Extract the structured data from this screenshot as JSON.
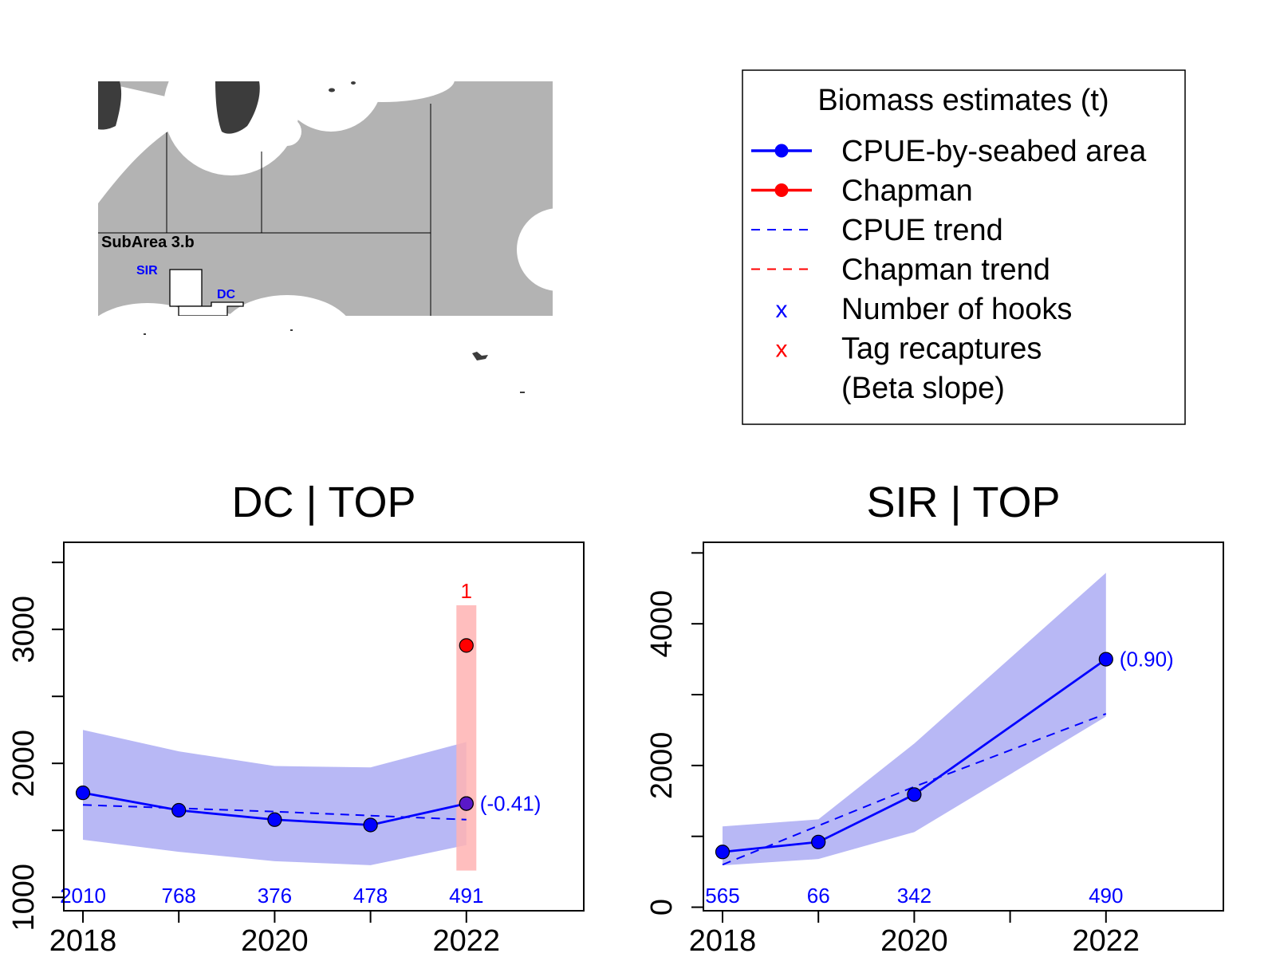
{
  "map": {
    "subarea_label": "SubArea 3.b",
    "sir_label": "SIR",
    "dc_label": "DC",
    "colors": {
      "sea": "#b3b3b3",
      "land": "#3c3c3c",
      "ice": "#ffffff",
      "rsr_label": "#0000ff"
    }
  },
  "legend": {
    "title": "Biomass estimates (t)",
    "items": [
      {
        "label": "CPUE-by-seabed area",
        "symbol": "line-point",
        "color": "#0000ff"
      },
      {
        "label": "Chapman",
        "symbol": "line-point",
        "color": "#ff0000"
      },
      {
        "label": "CPUE trend",
        "symbol": "dashed",
        "color": "#0000ff"
      },
      {
        "label": "Chapman trend",
        "symbol": "dashed",
        "color": "#ff0000"
      },
      {
        "label": "Number of hooks",
        "symbol": "x",
        "color": "#0000ff",
        "marker": "x"
      },
      {
        "label": "Tag recaptures",
        "symbol": "x",
        "color": "#ff0000",
        "marker": "x"
      },
      {
        "label": "(Beta slope)",
        "symbol": "none",
        "color": "#000000"
      }
    ]
  },
  "chart_data": [
    {
      "type": "line",
      "title": "DC | TOP",
      "x": [
        2018,
        2019,
        2020,
        2021,
        2022
      ],
      "xlim": [
        2018,
        2023
      ],
      "ylim": [
        900,
        3650
      ],
      "xticks": [
        2018,
        2019,
        2020,
        2021,
        2022
      ],
      "xtick_labels": [
        "2018",
        "",
        "2020",
        "",
        "2022"
      ],
      "yticks": [
        1000,
        1500,
        2000,
        2500,
        3000,
        3500
      ],
      "ytick_labels": [
        "1000",
        "",
        "2000",
        "",
        "3000",
        ""
      ],
      "cpue": [
        1780,
        1650,
        1580,
        1540,
        1700
      ],
      "cpue_ci_upper": [
        2250,
        2090,
        1980,
        1970,
        2160
      ],
      "cpue_ci_lower": [
        1430,
        1340,
        1270,
        1240,
        1390
      ],
      "cpue_trend": [
        1690,
        1665,
        1640,
        1610,
        1580
      ],
      "chapman": {
        "x": 2022,
        "value": 2880,
        "ci_lower": 1200,
        "ci_upper": 3180
      },
      "hooks": [
        "2010",
        "768",
        "376",
        "478",
        "491"
      ],
      "tag_recaptures": {
        "x": 2022,
        "value": "1"
      },
      "beta_slope": "(-0.41)",
      "colors": {
        "cpue": "#0000ff",
        "cpue_ci": "#b8b8f5",
        "chapman": "#ff0000",
        "chapman_ci": "#ffb3b3"
      }
    },
    {
      "type": "line",
      "title": "SIR | TOP",
      "x": [
        2018,
        2019,
        2020,
        2022
      ],
      "xlim": [
        2018,
        2023
      ],
      "ylim": [
        -50,
        5150
      ],
      "xticks": [
        2018,
        2019,
        2020,
        2021,
        2022
      ],
      "xtick_labels": [
        "2018",
        "",
        "2020",
        "",
        "2022"
      ],
      "yticks": [
        0,
        1000,
        2000,
        3000,
        4000,
        5000
      ],
      "ytick_labels": [
        "0",
        "",
        "2000",
        "",
        "4000",
        ""
      ],
      "cpue": [
        780,
        920,
        1590,
        3500
      ],
      "cpue_ci_upper": [
        1140,
        1240,
        2310,
        4720
      ],
      "cpue_ci_lower": [
        590,
        680,
        1060,
        2690
      ],
      "cpue_trend": [
        600,
        1150,
        1700,
        2730
      ],
      "hooks": [
        "565",
        "66",
        "342",
        "490"
      ],
      "beta_slope": "(0.90)",
      "colors": {
        "cpue": "#0000ff",
        "cpue_ci": "#b8b8f5"
      }
    }
  ]
}
